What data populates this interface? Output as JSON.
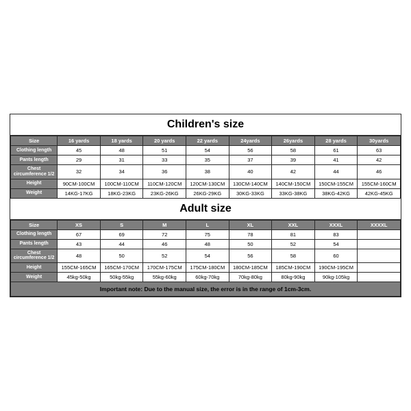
{
  "colors": {
    "border": "#2a2a2a",
    "header_bg": "#7e7e7e",
    "header_fg": "#ffffff",
    "cell_bg": "#ffffff",
    "page_bg": "#ffffff",
    "note_fg": "#000000"
  },
  "typography": {
    "title_fontsize_pt": 12,
    "title_fontweight": 700,
    "header_fontsize_pt": 7.5,
    "cell_fontsize_pt": 7.5,
    "note_fontsize_pt": 8.5,
    "font_family": "Arial"
  },
  "layout": {
    "columns": 9,
    "label_col_width_pct": 12,
    "data_col_width_pct": 11
  },
  "children": {
    "title": "Children's size",
    "columns": [
      "Size",
      "16 yards",
      "18 yards",
      "20 yards",
      "22 yards",
      "24yards",
      "26yards",
      "28 yards",
      "30yards"
    ],
    "rows": [
      {
        "label": "Clothing length",
        "values": [
          "45",
          "48",
          "51",
          "54",
          "56",
          "58",
          "61",
          "63"
        ]
      },
      {
        "label": "Pants length",
        "values": [
          "29",
          "31",
          "33",
          "35",
          "37",
          "39",
          "41",
          "42"
        ]
      },
      {
        "label": "Chest circumference 1/2",
        "values": [
          "32",
          "34",
          "36",
          "38",
          "40",
          "42",
          "44",
          "46"
        ]
      },
      {
        "label": "Height",
        "values": [
          "90CM-100CM",
          "100CM-110CM",
          "110CM-120CM",
          "120CM-130CM",
          "130CM-140CM",
          "140CM-150CM",
          "150CM-155CM",
          "155CM-160CM"
        ]
      },
      {
        "label": "Weight",
        "values": [
          "14KG-17KG",
          "18KG-23KG",
          "23KG-26KG",
          "26KG-29KG",
          "30KG-33KG",
          "33KG-38KG",
          "38KG-42KG",
          "42KG-45KG"
        ]
      }
    ]
  },
  "adult": {
    "title": "Adult size",
    "columns": [
      "Size",
      "XS",
      "S",
      "M",
      "L",
      "XL",
      "XXL",
      "XXXL",
      "XXXXL"
    ],
    "rows": [
      {
        "label": "Clothing length",
        "values": [
          "67",
          "69",
          "72",
          "75",
          "78",
          "81",
          "83",
          ""
        ]
      },
      {
        "label": "Pants length",
        "values": [
          "43",
          "44",
          "46",
          "48",
          "50",
          "52",
          "54",
          ""
        ]
      },
      {
        "label": "Chest circumference 1/2",
        "values": [
          "48",
          "50",
          "52",
          "54",
          "56",
          "58",
          "60",
          ""
        ]
      },
      {
        "label": "Height",
        "values": [
          "155CM-165CM",
          "165CM-170CM",
          "170CM-175CM",
          "175CM-180CM",
          "180CM-185CM",
          "185CM-190CM",
          "190CM-195CM",
          ""
        ]
      },
      {
        "label": "Weight",
        "values": [
          "45kg-50kg",
          "50kg-55kg",
          "55kg-60kg",
          "60kg-70kg",
          "70kg-80kg",
          "80kg-90kg",
          "90kg-105kg",
          ""
        ]
      }
    ]
  },
  "note": "Important note: Due to the manual size, the error is in the range of 1cm-3cm."
}
